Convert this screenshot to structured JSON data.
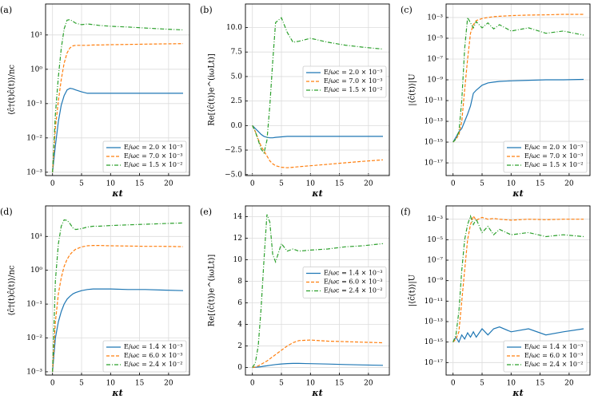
{
  "chart_data": [
    {
      "type": "line",
      "label": "(a)",
      "xlabel": "κt",
      "ylabel": "⟨ĉ†(t)ĉ(t)⟩/nc",
      "yscale": "log",
      "legend": "lower right",
      "grid": true,
      "x": [
        0,
        0.5,
        1,
        1.5,
        2,
        2.5,
        3,
        3.5,
        4,
        5,
        6,
        7,
        8,
        10,
        13,
        16,
        19,
        22.5
      ],
      "xlim": [
        -1.2,
        23.6
      ],
      "xticks": [
        0,
        5,
        10,
        15,
        20
      ],
      "ylim": [
        0.0008,
        80
      ],
      "yticks": [
        {
          "value": 0.001,
          "label": "10⁻³"
        },
        {
          "value": 0.01,
          "label": "10⁻²"
        },
        {
          "value": 0.1,
          "label": "10⁻¹"
        },
        {
          "value": 1,
          "label": "10⁰"
        },
        {
          "value": 10,
          "label": "10¹"
        }
      ],
      "series": [
        {
          "name": "E/ωc = 2.0 × 10⁻³",
          "color": "#1f77b4",
          "linestyle": "-",
          "values": [
            0.001,
            0.006,
            0.03,
            0.09,
            0.17,
            0.25,
            0.28,
            0.27,
            0.25,
            0.22,
            0.2,
            0.2,
            0.2,
            0.2,
            0.2,
            0.2,
            0.2,
            0.2
          ]
        },
        {
          "name": "E/ωc = 7.0 × 10⁻³",
          "color": "#ff7f0e",
          "linestyle": "--",
          "values": [
            0.001,
            0.02,
            0.12,
            0.5,
            1.5,
            3,
            4.2,
            4.8,
            5,
            5,
            5,
            5.1,
            5.1,
            5.2,
            5.3,
            5.4,
            5.5,
            5.6
          ]
        },
        {
          "name": "E/ωc = 1.5 × 10⁻²",
          "color": "#2ca02c",
          "linestyle": "-.",
          "values": [
            0.001,
            0.05,
            0.6,
            4,
            15,
            27,
            28,
            25,
            22,
            20,
            21,
            20,
            19,
            18,
            17,
            16,
            15,
            14
          ]
        }
      ]
    },
    {
      "type": "line",
      "label": "(b)",
      "xlabel": "κt",
      "ylabel": "Re[⟨ĉ(t)⟩e^(iωLt)]",
      "yscale": "linear",
      "legend": "center right",
      "grid": true,
      "x": [
        0,
        0.5,
        1,
        1.5,
        2,
        2.5,
        3,
        3.5,
        4,
        5,
        6,
        7,
        8,
        10,
        13,
        16,
        19,
        22.5
      ],
      "xlim": [
        -1.2,
        23.6
      ],
      "xticks": [
        0,
        5,
        10,
        15,
        20
      ],
      "ylim": [
        -5.1,
        12.4
      ],
      "yticks": [
        {
          "value": -5,
          "label": "−5.0"
        },
        {
          "value": -2.5,
          "label": "−2.5"
        },
        {
          "value": 0,
          "label": "0.0"
        },
        {
          "value": 2.5,
          "label": "2.5"
        },
        {
          "value": 5,
          "label": "5.0"
        },
        {
          "value": 7.5,
          "label": "7.5"
        },
        {
          "value": 10,
          "label": "10.0"
        }
      ],
      "series": [
        {
          "name": "E/ωc = 2.0 × 10⁻³",
          "color": "#1f77b4",
          "linestyle": "-",
          "values": [
            0,
            -0.3,
            -0.6,
            -0.9,
            -1.1,
            -1.2,
            -1.25,
            -1.25,
            -1.2,
            -1.15,
            -1.1,
            -1.1,
            -1.1,
            -1.1,
            -1.1,
            -1.1,
            -1.1,
            -1.1
          ]
        },
        {
          "name": "E/ωc = 7.0 × 10⁻³",
          "color": "#ff7f0e",
          "linestyle": "--",
          "values": [
            0,
            -0.6,
            -1.4,
            -2.1,
            -2.6,
            -3.1,
            -3.6,
            -3.9,
            -4.1,
            -4.25,
            -4.3,
            -4.25,
            -4.2,
            -4.1,
            -3.95,
            -3.8,
            -3.65,
            -3.5
          ]
        },
        {
          "name": "E/ωc = 1.5 × 10⁻²",
          "color": "#2ca02c",
          "linestyle": "-.",
          "values": [
            0,
            -0.6,
            -1.5,
            -2.4,
            -2.8,
            -1.5,
            2,
            6.5,
            10.5,
            11,
            9.5,
            8.5,
            8.6,
            8.9,
            8.5,
            8.2,
            8,
            7.8
          ]
        }
      ]
    },
    {
      "type": "line",
      "label": "(c)",
      "xlabel": "κt",
      "ylabel": "|⟨ĉ(t)⟩|U",
      "yscale": "log",
      "legend": "lower right",
      "grid": true,
      "x": [
        0,
        0.5,
        1,
        1.5,
        2,
        2.5,
        3,
        3.5,
        4,
        5,
        6,
        7,
        8,
        10,
        13,
        16,
        19,
        22.5
      ],
      "xlim": [
        -1.2,
        23.6
      ],
      "xticks": [
        0,
        5,
        10,
        15,
        20
      ],
      "ylim": [
        6e-19,
        0.02
      ],
      "yticks": [
        {
          "value": 1e-17,
          "label": "10⁻¹⁷"
        },
        {
          "value": 1e-15,
          "label": "10⁻¹⁵"
        },
        {
          "value": 1e-13,
          "label": "10⁻¹³"
        },
        {
          "value": 1e-11,
          "label": "10⁻¹¹"
        },
        {
          "value": 1e-09,
          "label": "10⁻⁹"
        },
        {
          "value": 1e-07,
          "label": "10⁻⁷"
        },
        {
          "value": 1e-05,
          "label": "10⁻⁵"
        },
        {
          "value": 0.001,
          "label": "10⁻³"
        }
      ],
      "series": [
        {
          "name": "E/ωc = 2.0 × 10⁻³",
          "color": "#1f77b4",
          "linestyle": "-",
          "values": [
            1e-15,
            3e-15,
            1e-14,
            2e-14,
            1e-13,
            5e-13,
            3e-12,
            5e-11,
            1e-10,
            3e-10,
            5e-10,
            6e-10,
            7e-10,
            8e-10,
            9e-10,
            1e-09,
            1e-09,
            1.1e-09
          ]
        },
        {
          "name": "E/ωc = 7.0 × 10⁻³",
          "color": "#ff7f0e",
          "linestyle": "--",
          "values": [
            1e-15,
            2e-15,
            5e-15,
            1e-13,
            1e-10,
            1e-07,
            3e-05,
            0.0002,
            0.0005,
            0.0008,
            0.001,
            0.0012,
            0.0013,
            0.0015,
            0.0017,
            0.0018,
            0.002,
            0.002
          ]
        },
        {
          "name": "E/ωc = 1.5 × 10⁻²",
          "color": "#2ca02c",
          "linestyle": "-.",
          "values": [
            1e-15,
            2e-15,
            1e-14,
            1e-11,
            1e-06,
            0.001,
            0.0003,
            0.0001,
            0.0004,
            0.0001,
            0.0003,
            8e-05,
            0.0002,
            5e-05,
            0.0001,
            3e-05,
            5e-05,
            2e-05
          ]
        }
      ]
    },
    {
      "type": "line",
      "label": "(d)",
      "xlabel": "κt",
      "ylabel": "⟨ĉ†(t)ĉ(t)⟩/nc",
      "yscale": "log",
      "legend": "lower right",
      "grid": true,
      "x": [
        0,
        0.5,
        1,
        1.5,
        2,
        2.5,
        3,
        3.5,
        4,
        5,
        6,
        7,
        8,
        10,
        13,
        16,
        19,
        22.5
      ],
      "xlim": [
        -1.2,
        23.6
      ],
      "xticks": [
        0,
        5,
        10,
        15,
        20
      ],
      "ylim": [
        0.0008,
        80
      ],
      "yticks": [
        {
          "value": 0.001,
          "label": "10⁻³"
        },
        {
          "value": 0.01,
          "label": "10⁻²"
        },
        {
          "value": 0.1,
          "label": "10⁻¹"
        },
        {
          "value": 1,
          "label": "10⁰"
        },
        {
          "value": 10,
          "label": "10¹"
        }
      ],
      "series": [
        {
          "name": "E/ωc = 1.4 × 10⁻³",
          "color": "#1f77b4",
          "linestyle": "-",
          "values": [
            0.001,
            0.01,
            0.03,
            0.06,
            0.1,
            0.14,
            0.17,
            0.2,
            0.22,
            0.25,
            0.27,
            0.28,
            0.28,
            0.28,
            0.27,
            0.27,
            0.26,
            0.25
          ]
        },
        {
          "name": "E/ωc = 6.0 × 10⁻³",
          "color": "#ff7f0e",
          "linestyle": "--",
          "values": [
            0.001,
            0.03,
            0.2,
            0.6,
            1.3,
            2.1,
            2.9,
            3.6,
            4.2,
            4.9,
            5.3,
            5.4,
            5.4,
            5.3,
            5.2,
            5.1,
            5.1,
            5
          ]
        },
        {
          "name": "E/ωc = 2.4 × 10⁻²",
          "color": "#2ca02c",
          "linestyle": "-.",
          "values": [
            0.001,
            0.5,
            6,
            20,
            31,
            30,
            24,
            18,
            16,
            17,
            19,
            20,
            20,
            21,
            22,
            23,
            24,
            25
          ]
        }
      ]
    },
    {
      "type": "line",
      "label": "(e)",
      "xlabel": "κt",
      "ylabel": "Re[⟨ĉ(t)⟩e^(iωLt)]",
      "yscale": "linear",
      "legend": "center right",
      "grid": true,
      "x": [
        0,
        0.5,
        1,
        1.5,
        2,
        2.5,
        3,
        3.5,
        4,
        5,
        6,
        7,
        8,
        10,
        13,
        16,
        19,
        22.5
      ],
      "xlim": [
        -1.2,
        23.6
      ],
      "xticks": [
        0,
        5,
        10,
        15,
        20
      ],
      "ylim": [
        -0.7,
        15
      ],
      "yticks": [
        0,
        2,
        4,
        6,
        8,
        10,
        12,
        14
      ],
      "series": [
        {
          "name": "E/ωc = 1.4 × 10⁻³",
          "color": "#1f77b4",
          "linestyle": "-",
          "values": [
            0,
            0.02,
            0.05,
            0.08,
            0.12,
            0.16,
            0.2,
            0.24,
            0.28,
            0.33,
            0.37,
            0.38,
            0.38,
            0.36,
            0.32,
            0.28,
            0.24,
            0.2
          ]
        },
        {
          "name": "E/ωc = 6.0 × 10⁻³",
          "color": "#ff7f0e",
          "linestyle": "--",
          "values": [
            0,
            0.05,
            0.15,
            0.3,
            0.45,
            0.6,
            0.8,
            1,
            1.2,
            1.6,
            2,
            2.3,
            2.5,
            2.55,
            2.45,
            2.4,
            2.35,
            2.3
          ]
        },
        {
          "name": "E/ωc = 2.4 × 10⁻²",
          "color": "#2ca02c",
          "linestyle": "-.",
          "values": [
            0,
            0.4,
            2,
            5.5,
            10,
            14.2,
            13.5,
            10.5,
            9.8,
            11.5,
            10.8,
            11,
            10.8,
            10.9,
            11,
            11.2,
            11.3,
            11.5
          ]
        }
      ]
    },
    {
      "type": "line",
      "label": "(f)",
      "xlabel": "κt",
      "ylabel": "|⟨ĉ(t)⟩|U",
      "yscale": "log",
      "legend": "lower right",
      "grid": true,
      "x": [
        0,
        0.5,
        1,
        1.5,
        2,
        2.5,
        3,
        3.5,
        4,
        5,
        6,
        7,
        8,
        10,
        13,
        16,
        19,
        22.5
      ],
      "xlim": [
        -1.2,
        23.6
      ],
      "xticks": [
        0,
        5,
        10,
        15,
        20
      ],
      "ylim": [
        6e-19,
        0.02
      ],
      "yticks": [
        {
          "value": 1e-17,
          "label": "10⁻¹⁷"
        },
        {
          "value": 1e-15,
          "label": "10⁻¹⁵"
        },
        {
          "value": 1e-13,
          "label": "10⁻¹³"
        },
        {
          "value": 1e-11,
          "label": "10⁻¹¹"
        },
        {
          "value": 1e-09,
          "label": "10⁻⁹"
        },
        {
          "value": 1e-07,
          "label": "10⁻⁷"
        },
        {
          "value": 1e-05,
          "label": "10⁻⁵"
        },
        {
          "value": 0.001,
          "label": "10⁻³"
        }
      ],
      "series": [
        {
          "name": "E/ωc = 1.4 × 10⁻³",
          "color": "#1f77b4",
          "linestyle": "-",
          "values": [
            1e-15,
            3e-15,
            1e-15,
            5e-15,
            2e-15,
            8e-15,
            3e-15,
            1e-14,
            3e-15,
            2e-14,
            5e-15,
            2e-14,
            3e-14,
            1e-14,
            2e-14,
            5e-15,
            1e-14,
            2e-14
          ]
        },
        {
          "name": "E/ωc = 6.0 × 10⁻³",
          "color": "#ff7f0e",
          "linestyle": "--",
          "values": [
            1e-15,
            2e-15,
            1e-14,
            1e-11,
            1e-08,
            1e-05,
            0.0003,
            0.002,
            0.0008,
            0.0015,
            0.001,
            0.0012,
            0.001,
            0.0008,
            0.001,
            0.0009,
            0.001,
            0.001
          ]
        },
        {
          "name": "E/ωc = 2.4 × 10⁻²",
          "color": "#2ca02c",
          "linestyle": "-.",
          "values": [
            1e-15,
            5e-15,
            1e-12,
            1e-08,
            1e-05,
            0.0003,
            0.002,
            0.0003,
            0.001,
            5e-05,
            0.0002,
            3e-05,
            0.0001,
            3e-05,
            5e-05,
            2e-05,
            3e-05,
            2e-05
          ]
        }
      ]
    }
  ]
}
